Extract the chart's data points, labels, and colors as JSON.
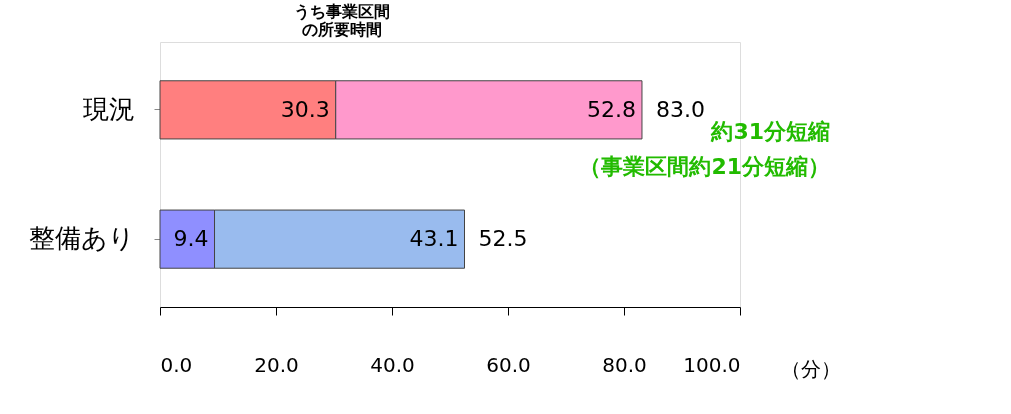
{
  "chart_data": {
    "type": "bar",
    "orientation": "horizontal",
    "stacked": true,
    "categories": [
      "現況",
      "整備あり"
    ],
    "series": [
      {
        "colors": [
          "#ff7f7f",
          "#8f8fff"
        ],
        "values": [
          30.3,
          9.4
        ]
      },
      {
        "colors": [
          "#ff99cc",
          "#99bbee"
        ],
        "values": [
          52.8,
          43.1
        ]
      }
    ],
    "data_labels": true,
    "totals": [
      "83.0",
      "52.5"
    ],
    "xlabel": "（分）",
    "xlim": [
      0,
      100
    ],
    "xticks": [
      {
        "value": 0,
        "label": "0.0"
      },
      {
        "value": 20,
        "label": "20.0"
      },
      {
        "value": 40,
        "label": "40.0"
      },
      {
        "value": 60,
        "label": "60.0"
      },
      {
        "value": 80,
        "label": "80.0"
      },
      {
        "value": 100,
        "label": "100.0"
      }
    ],
    "annotations": [
      "うち事業区間の所要時間",
      "約31分短縮",
      "（事業区間約21分短縮）"
    ],
    "grid": false,
    "legend": false
  }
}
